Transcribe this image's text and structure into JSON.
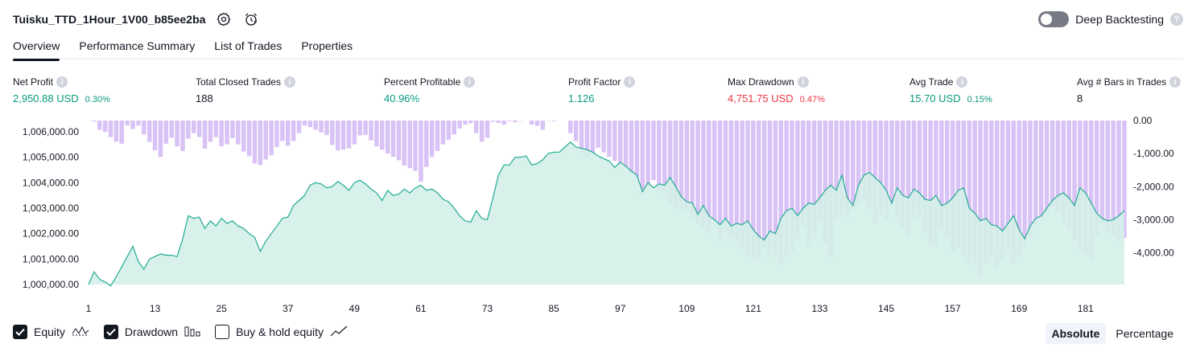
{
  "header": {
    "strategy_name": "Tuisku_TTD_1Hour_1V00_b85ee2ba",
    "deep_backtesting_label": "Deep Backtesting",
    "help_glyph": "?"
  },
  "tabs": [
    "Overview",
    "Performance Summary",
    "List of Trades",
    "Properties"
  ],
  "metrics": [
    {
      "label": "Net Profit",
      "value": "2,950.88 USD",
      "sub": "0.30%",
      "tone": "pos"
    },
    {
      "label": "Total Closed Trades",
      "value": "188",
      "sub": "",
      "tone": "neu"
    },
    {
      "label": "Percent Profitable",
      "value": "40.96%",
      "sub": "",
      "tone": "pos"
    },
    {
      "label": "Profit Factor",
      "value": "1.126",
      "sub": "",
      "tone": "pos"
    },
    {
      "label": "Max Drawdown",
      "value": "4,751.75 USD",
      "sub": "0.47%",
      "tone": "neg"
    },
    {
      "label": "Avg Trade",
      "value": "15.70 USD",
      "sub": "0.15%",
      "tone": "pos"
    },
    {
      "label": "Avg # Bars in Trades",
      "value": "8",
      "sub": "",
      "tone": "neu"
    }
  ],
  "legend": {
    "equity": "Equity",
    "drawdown": "Drawdown",
    "buyhold": "Buy & hold equity"
  },
  "mode": {
    "absolute": "Absolute",
    "percentage": "Percentage"
  },
  "colors": {
    "equity_line": "#22ab94",
    "equity_fill": "#d4efe9",
    "drawdown_bar": "#d9c2f5",
    "positive": "#089981",
    "negative": "#f23645"
  },
  "chart_data": {
    "type": "area",
    "x_ticks": [
      1,
      13,
      25,
      37,
      49,
      61,
      73,
      85,
      97,
      109,
      121,
      133,
      145,
      157,
      169,
      181
    ],
    "y_left_ticks": [
      "1,006,000.00",
      "1,005,000.00",
      "1,004,000.00",
      "1,003,000.00",
      "1,002,000.00",
      "1,001,000.00",
      "1,000,000.00"
    ],
    "y_right_ticks": [
      "0.00",
      "-1,000.00",
      "-2,000.00",
      "-3,000.00",
      "-4,000.00"
    ],
    "y_left_range": [
      1000000,
      1006000
    ],
    "y_right_range": [
      -4751.75,
      0
    ],
    "x_range": [
      1,
      188
    ],
    "equity": [
      1000000,
      1000500,
      1000200,
      1000100,
      999950,
      1000300,
      1000700,
      1001100,
      1001500,
      1000900,
      1000600,
      1001000,
      1001100,
      1001200,
      1001150,
      1001150,
      1001100,
      1001800,
      1002700,
      1002600,
      1002650,
      1002200,
      1002500,
      1002300,
      1002600,
      1002400,
      1002500,
      1002300,
      1002200,
      1002000,
      1001850,
      1001300,
      1001700,
      1002000,
      1002300,
      1002600,
      1002650,
      1003100,
      1003300,
      1003500,
      1003900,
      1004000,
      1003950,
      1003800,
      1003850,
      1004050,
      1003900,
      1003700,
      1004000,
      1004100,
      1003950,
      1003750,
      1003600,
      1003300,
      1003700,
      1003500,
      1003550,
      1003750,
      1003600,
      1003800,
      1003900,
      1003700,
      1003750,
      1003600,
      1003350,
      1003250,
      1003000,
      1002700,
      1002500,
      1002450,
      1002900,
      1002600,
      1002550,
      1003400,
      1004300,
      1004700,
      1004700,
      1005000,
      1005000,
      1005050,
      1004700,
      1004750,
      1004900,
      1005150,
      1005200,
      1005200,
      1005400,
      1005600,
      1005400,
      1005350,
      1005300,
      1005200,
      1005050,
      1004950,
      1004850,
      1004600,
      1004800,
      1004650,
      1004450,
      1004300,
      1003650,
      1004000,
      1003800,
      1003950,
      1003900,
      1004200,
      1003850,
      1003450,
      1003250,
      1003200,
      1002750,
      1003100,
      1002700,
      1002550,
      1002350,
      1002600,
      1002300,
      1002400,
      1002350,
      1002500,
      1002150,
      1001900,
      1001750,
      1002100,
      1002000,
      1002600,
      1002900,
      1003000,
      1002700,
      1003000,
      1003200,
      1003150,
      1003400,
      1003700,
      1003900,
      1003700,
      1004300,
      1003400,
      1003100,
      1003900,
      1004300,
      1004400,
      1004200,
      1004000,
      1003700,
      1003200,
      1003800,
      1003500,
      1003400,
      1003750,
      1003600,
      1003350,
      1003300,
      1003500,
      1003100,
      1003200,
      1003400,
      1003700,
      1003800,
      1003000,
      1002800,
      1002500,
      1002600,
      1002350,
      1002300,
      1002100,
      1002400,
      1002700,
      1002150,
      1001800,
      1002300,
      1002600,
      1002700,
      1003000,
      1003300,
      1003500,
      1003600,
      1003400,
      1003100,
      1003800,
      1003600,
      1003200,
      1002800,
      1002600,
      1002500,
      1002550,
      1002700,
      1002900
    ],
    "drawdown": [
      0,
      -30,
      -280,
      -340,
      -500,
      -640,
      -700,
      -150,
      -260,
      -150,
      -420,
      -650,
      -900,
      -1100,
      -700,
      -520,
      -780,
      -920,
      -550,
      -380,
      -500,
      -850,
      -640,
      -500,
      -780,
      -720,
      -530,
      -720,
      -940,
      -1080,
      -1300,
      -1350,
      -1180,
      -1050,
      -800,
      -620,
      -760,
      -620,
      -380,
      -150,
      -200,
      -280,
      -360,
      -440,
      -740,
      -900,
      -880,
      -840,
      -720,
      -450,
      -430,
      -600,
      -780,
      -880,
      -1000,
      -1100,
      -1200,
      -1360,
      -1440,
      -1520,
      -1850,
      -1400,
      -1100,
      -920,
      -720,
      -580,
      -420,
      -240,
      -120,
      -80,
      -380,
      -640,
      -520,
      -40,
      -70,
      -120,
      -20,
      -50,
      -10,
      0,
      -120,
      -160,
      -280,
      -10,
      -20,
      0,
      0,
      -380,
      -620,
      -980,
      -1100,
      -1000,
      -820,
      -960,
      -1100,
      -1220,
      -1300,
      -1450,
      -1600,
      -1750,
      -2250,
      -2000,
      -1800,
      -2100,
      -2200,
      -2550,
      -2650,
      -2700,
      -2750,
      -3000,
      -3100,
      -3250,
      -3400,
      -3050,
      -3700,
      -3400,
      -3500,
      -3650,
      -3900,
      -4100,
      -4150,
      -4200,
      -3850,
      -4050,
      -4100,
      -4350,
      -4150,
      -3950,
      -3600,
      -3200,
      -3800,
      -3400,
      -3050,
      -3700,
      -4100,
      -3000,
      -2850,
      -2950,
      -2700,
      -2500,
      -2400,
      -2700,
      -3100,
      -2850,
      -3000,
      -2600,
      -2900,
      -3300,
      -3450,
      -2950,
      -2850,
      -3400,
      -3750,
      -3800,
      -3300,
      -3500,
      -3950,
      -3850,
      -4050,
      -4300,
      -4400,
      -4751,
      -4300,
      -4100,
      -4450,
      -4200,
      -4000,
      -4300,
      -4100,
      -3800,
      -3500,
      -3150,
      -3000,
      -2800,
      -2600,
      -2750,
      -3100,
      -3300,
      -3650,
      -3900,
      -4050,
      -4200,
      -3500,
      -3100,
      -3350,
      -3450,
      -3650,
      -3550
    ]
  }
}
